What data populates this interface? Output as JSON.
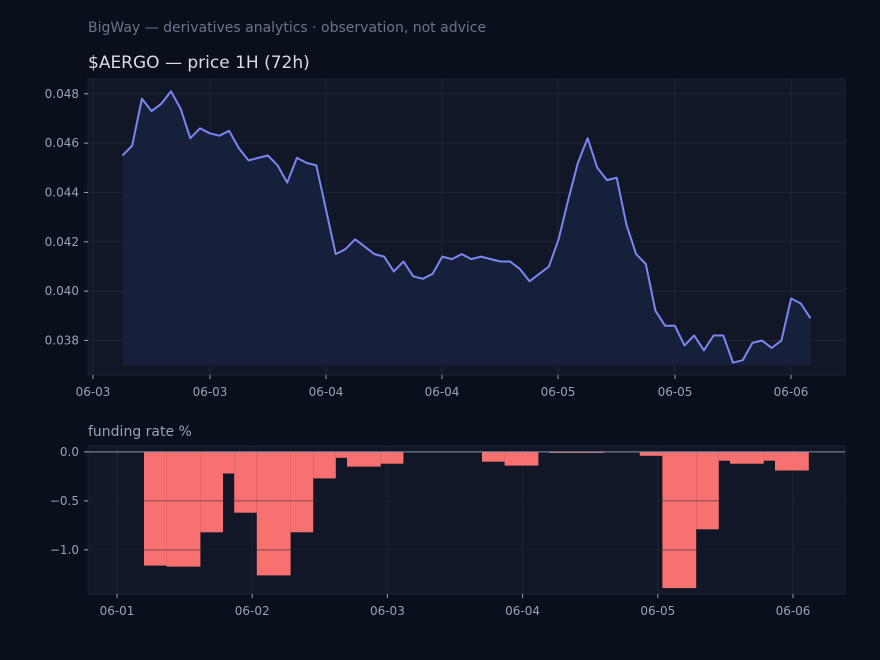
{
  "header": {
    "text": "BigWay — derivatives analytics · observation, not advice"
  },
  "colors": {
    "background": "#0a0f1c",
    "panel": "#111726",
    "grid": "#1e2535",
    "price_line": "#7b87f0",
    "price_fill": "#18213d",
    "funding_bar": "#f87171",
    "zero_line": "#8a93a6",
    "tick_text": "#9aa1b2"
  },
  "chart_data": [
    {
      "type": "line",
      "title": "$AERGO — price 1H (72h)",
      "xlabel": "",
      "ylabel": "",
      "x_ticks": [
        "06-03",
        "06-03",
        "06-04",
        "06-04",
        "06-05",
        "06-05",
        "06-06"
      ],
      "ylim": [
        0.0366,
        0.0486
      ],
      "y_ticks": [
        0.038,
        0.04,
        0.042,
        0.044,
        0.046,
        0.048
      ],
      "grid": true,
      "series": [
        {
          "values": [
            0.0455,
            0.0459,
            0.0478,
            0.0473,
            0.0476,
            0.0481,
            0.0474,
            0.0462,
            0.0466,
            0.0464,
            0.0463,
            0.0465,
            0.0458,
            0.0453,
            0.0454,
            0.0455,
            0.0451,
            0.0444,
            0.0454,
            0.0452,
            0.0451,
            0.0433,
            0.0415,
            0.0417,
            0.0421,
            0.0418,
            0.0415,
            0.0414,
            0.0408,
            0.0412,
            0.0406,
            0.0405,
            0.0407,
            0.0414,
            0.0413,
            0.0415,
            0.0413,
            0.0414,
            0.0413,
            0.0412,
            0.0412,
            0.0409,
            0.0404,
            0.0407,
            0.041,
            0.0421,
            0.0437,
            0.0452,
            0.0462,
            0.045,
            0.0445,
            0.0446,
            0.0427,
            0.0415,
            0.0411,
            0.0392,
            0.0386,
            0.0386,
            0.0378,
            0.0382,
            0.0376,
            0.0382,
            0.0382,
            0.0371,
            0.0372,
            0.0379,
            0.038,
            0.0377,
            0.038,
            0.0397,
            0.0395,
            0.0389
          ]
        }
      ]
    },
    {
      "type": "bar",
      "title": "funding rate %",
      "xlabel": "",
      "ylabel": "",
      "x_ticks": [
        "06-01",
        "06-02",
        "06-03",
        "06-04",
        "06-05",
        "06-06"
      ],
      "ylim": [
        -1.45,
        0.06
      ],
      "y_ticks": [
        0.0,
        -0.5,
        -1.0
      ],
      "grid": true,
      "bars": [
        {
          "day": 1.2,
          "width": 0.167,
          "value": -1.16
        },
        {
          "day": 1.367,
          "width": 0.25,
          "value": -1.17
        },
        {
          "day": 1.617,
          "width": 0.167,
          "value": -0.82
        },
        {
          "day": 1.784,
          "width": 0.083,
          "value": -0.22
        },
        {
          "day": 1.867,
          "width": 0.167,
          "value": -0.62
        },
        {
          "day": 2.034,
          "width": 0.25,
          "value": -1.26
        },
        {
          "day": 2.284,
          "width": 0.167,
          "value": -0.82
        },
        {
          "day": 2.451,
          "width": 0.167,
          "value": -0.27
        },
        {
          "day": 2.618,
          "width": 0.083,
          "value": -0.06
        },
        {
          "day": 2.701,
          "width": 0.25,
          "value": -0.15
        },
        {
          "day": 2.951,
          "width": 0.167,
          "value": -0.12
        },
        {
          "day": 3.7,
          "width": 0.167,
          "value": -0.1
        },
        {
          "day": 3.867,
          "width": 0.25,
          "value": -0.14
        },
        {
          "day": 4.2,
          "width": 0.4,
          "value": -0.01
        },
        {
          "day": 4.867,
          "width": 0.167,
          "value": -0.04
        },
        {
          "day": 5.034,
          "width": 0.25,
          "value": -1.39
        },
        {
          "day": 5.284,
          "width": 0.167,
          "value": -0.79
        },
        {
          "day": 5.451,
          "width": 0.083,
          "value": -0.09
        },
        {
          "day": 5.534,
          "width": 0.25,
          "value": -0.12
        },
        {
          "day": 5.784,
          "width": 0.083,
          "value": -0.09
        },
        {
          "day": 5.867,
          "width": 0.25,
          "value": -0.19
        }
      ]
    }
  ]
}
